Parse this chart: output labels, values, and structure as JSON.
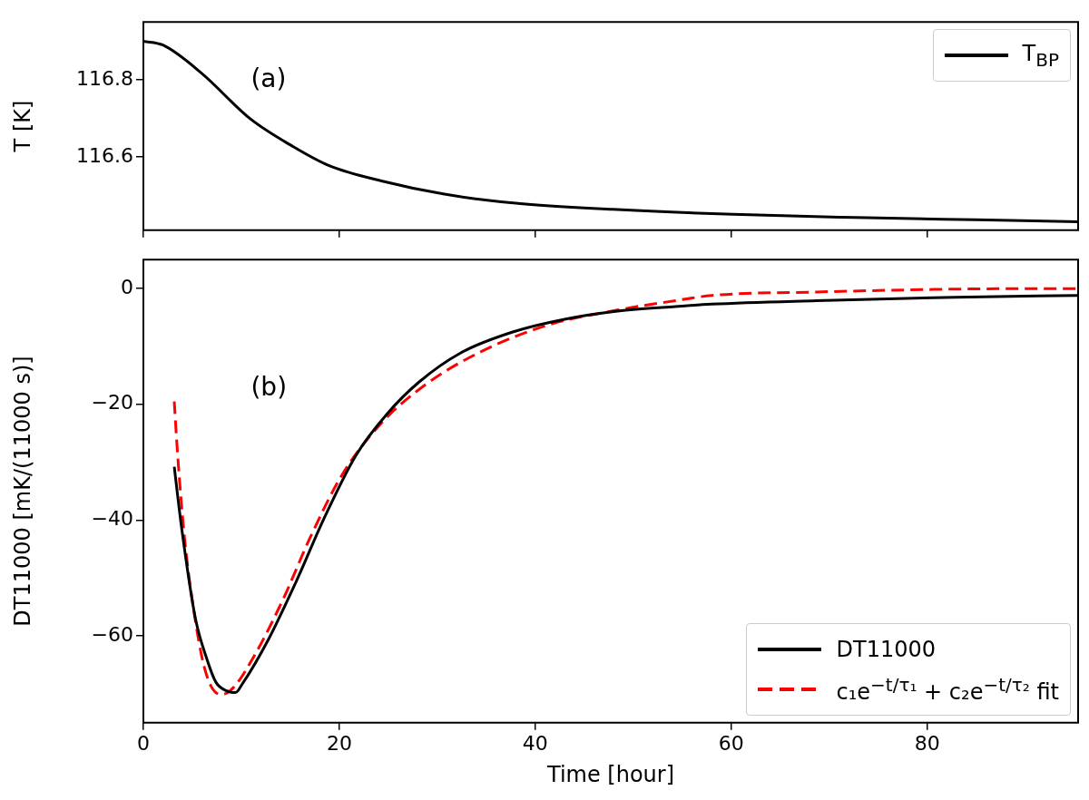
{
  "chart_data": [
    {
      "type": "line",
      "ylabel": "T [K]",
      "xlim": [
        0,
        95.4
      ],
      "xticks": [
        0,
        20,
        40,
        60,
        80
      ],
      "ylim": [
        116.41,
        116.95
      ],
      "yticks": [
        116.6,
        116.8
      ],
      "tick_labels": "y",
      "legend": "top right",
      "grid": false,
      "annotations": [
        "(a)"
      ],
      "series": [
        {
          "name": "T$_{BP}$",
          "color": "#000000",
          "line_style": "solid",
          "x": [
            0,
            2,
            5.9,
            10.9,
            15.2,
            18.9,
            24.4,
            30.6,
            38.0,
            47.9,
            60.2,
            72.6,
            84.9,
            95.4
          ],
          "values": [
            116.9,
            116.89,
            116.818,
            116.699,
            116.628,
            116.578,
            116.537,
            116.504,
            116.48,
            116.464,
            116.451,
            116.443,
            116.437,
            116.432
          ]
        }
      ]
    },
    {
      "type": "line",
      "xlabel": "Time [hour]",
      "ylabel": "DT11000 [mK/(11000 s)]",
      "xlim": [
        0,
        95.4
      ],
      "xticks": [
        0,
        20,
        40,
        60,
        80
      ],
      "ylim": [
        -75,
        5
      ],
      "yticks": [
        {
          "value": 0,
          "label": "0"
        },
        {
          "value": -20,
          "label": "−20"
        },
        {
          "value": -40,
          "label": "−40"
        },
        {
          "value": -60,
          "label": "−60"
        }
      ],
      "legend": "bottom right",
      "grid": false,
      "annotations": [
        "(b)"
      ],
      "series": [
        {
          "name": "DT11000",
          "color": "#000000",
          "line_style": "solid",
          "x": [
            3.15,
            3.9,
            5.3,
            6.5,
            7.4,
            8.5,
            9.4,
            10.1,
            12.8,
            15.6,
            18.5,
            21.7,
            24.9,
            28.1,
            32.4,
            37.7,
            43.0,
            48.4,
            54.3,
            58,
            68.7,
            82.9,
            95.4
          ],
          "values": [
            -30.8,
            -41.3,
            -56.9,
            -64.1,
            -68.0,
            -69.5,
            -69.8,
            -68.3,
            -60.5,
            -50.6,
            -39.5,
            -28.8,
            -21.6,
            -16.2,
            -11.1,
            -7.5,
            -5.3,
            -3.9,
            -3.1,
            -2.7,
            -2.1,
            -1.5,
            -1.2
          ]
        },
        {
          "name": "c₁e$^{−t/τ₁}$ + c₂e$^{−t/τ₂}$ fit",
          "color": "#ff0000",
          "line_style": "dashed",
          "x": [
            3.15,
            3.5,
            4.2,
            5.1,
            6.2,
            7.4,
            8.1,
            9.2,
            11.3,
            14.2,
            17.0,
            20.2,
            24.2,
            28.8,
            34.1,
            41.3,
            48.4,
            54.3,
            58,
            68.7,
            82.9,
            95.4
          ],
          "values": [
            -19.5,
            -28.8,
            -43.1,
            -55.1,
            -65.3,
            -69.8,
            -70.1,
            -68.9,
            -63.5,
            -53.9,
            -43.1,
            -32.4,
            -23.4,
            -16.6,
            -11.2,
            -6.3,
            -3.7,
            -2.1,
            -1.2,
            -0.6,
            -0.1,
            0.0
          ]
        }
      ]
    }
  ]
}
